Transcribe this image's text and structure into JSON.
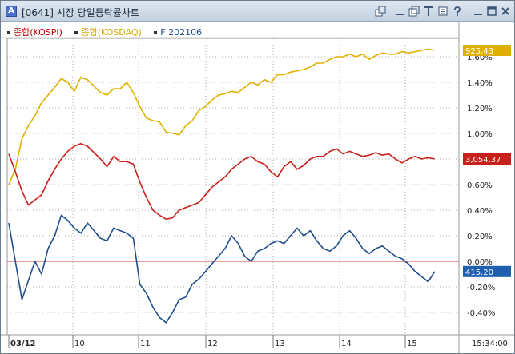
{
  "window": {
    "code": "[0641]",
    "title": "시장 당일등락률차트",
    "app_icon_letter": "A"
  },
  "legend": [
    {
      "label": "종합(KOSPI)",
      "color": "#c00000"
    },
    {
      "label": "종합(KOSDAQ)",
      "color": "#d4aa00"
    },
    {
      "label": "F 202106",
      "color": "#1f4e8a"
    }
  ],
  "colors": {
    "kospi": "#c8201a",
    "kosdaq": "#e0b000",
    "futures": "#1f4e8a",
    "zero_line": "#d63a3a",
    "grid": "#a8a8a8",
    "background": "#ffffff"
  },
  "value_labels": {
    "kosdaq": "925.43",
    "kospi": "3,054.37",
    "futures": "415.20"
  },
  "chart_data": {
    "type": "line",
    "title": "",
    "xlabel": "",
    "ylabel": "",
    "x_ticks": [
      "03/12",
      "10",
      "11",
      "12",
      "13",
      "14",
      "15"
    ],
    "time_label": "15:34:00",
    "y_ticks": [
      "1.60%",
      "1.40%",
      "1.20%",
      "1.00%",
      "0.80%",
      "0.60%",
      "0.40%",
      "0.20%",
      "0.00%",
      "-0.20%",
      "-0.40%"
    ],
    "ylim": [
      -0.55,
      1.72
    ],
    "x_range": [
      0,
      66
    ],
    "grid": true,
    "series": [
      {
        "name": "종합(KOSDAQ)",
        "key": "kosdaq",
        "x": [
          0,
          1,
          2,
          3,
          4,
          5,
          6,
          7,
          8,
          9,
          10,
          11,
          12,
          13,
          14,
          15,
          16,
          17,
          18,
          19,
          20,
          21,
          22,
          23,
          24,
          25,
          26,
          27,
          28,
          29,
          30,
          31,
          32,
          33,
          34,
          35,
          36,
          37,
          38,
          39,
          40,
          41,
          42,
          43,
          44,
          45,
          46,
          47,
          48,
          49,
          50,
          51,
          52,
          53,
          54,
          55,
          56,
          57,
          58,
          59,
          60,
          61,
          62,
          63,
          64,
          65
        ],
        "values": [
          0.6,
          0.72,
          0.96,
          1.06,
          1.14,
          1.24,
          1.3,
          1.36,
          1.43,
          1.4,
          1.33,
          1.44,
          1.42,
          1.37,
          1.32,
          1.3,
          1.35,
          1.35,
          1.4,
          1.32,
          1.21,
          1.12,
          1.1,
          1.09,
          1.01,
          1.0,
          0.99,
          1.06,
          1.1,
          1.18,
          1.21,
          1.26,
          1.3,
          1.31,
          1.33,
          1.32,
          1.36,
          1.4,
          1.38,
          1.42,
          1.4,
          1.46,
          1.46,
          1.48,
          1.49,
          1.5,
          1.52,
          1.55,
          1.55,
          1.58,
          1.6,
          1.6,
          1.62,
          1.6,
          1.62,
          1.58,
          1.61,
          1.63,
          1.62,
          1.62,
          1.64,
          1.63,
          1.64,
          1.65,
          1.66,
          1.65
        ]
      },
      {
        "name": "종합(KOSPI)",
        "key": "kospi",
        "x": [
          0,
          1,
          2,
          3,
          4,
          5,
          6,
          7,
          8,
          9,
          10,
          11,
          12,
          13,
          14,
          15,
          16,
          17,
          18,
          19,
          20,
          21,
          22,
          23,
          24,
          25,
          26,
          27,
          28,
          29,
          30,
          31,
          32,
          33,
          34,
          35,
          36,
          37,
          38,
          39,
          40,
          41,
          42,
          43,
          44,
          45,
          46,
          47,
          48,
          49,
          50,
          51,
          52,
          53,
          54,
          55,
          56,
          57,
          58,
          59,
          60,
          61,
          62,
          63,
          64,
          65
        ],
        "values": [
          0.84,
          0.7,
          0.55,
          0.44,
          0.48,
          0.52,
          0.63,
          0.72,
          0.8,
          0.86,
          0.9,
          0.92,
          0.9,
          0.85,
          0.8,
          0.74,
          0.82,
          0.78,
          0.78,
          0.76,
          0.62,
          0.5,
          0.4,
          0.36,
          0.33,
          0.34,
          0.4,
          0.42,
          0.44,
          0.46,
          0.52,
          0.58,
          0.62,
          0.66,
          0.72,
          0.76,
          0.8,
          0.82,
          0.78,
          0.76,
          0.7,
          0.66,
          0.74,
          0.78,
          0.72,
          0.75,
          0.8,
          0.82,
          0.82,
          0.86,
          0.88,
          0.84,
          0.86,
          0.84,
          0.82,
          0.83,
          0.85,
          0.83,
          0.84,
          0.8,
          0.77,
          0.8,
          0.82,
          0.8,
          0.81,
          0.8
        ]
      },
      {
        "name": "F 202106",
        "key": "futures",
        "x": [
          0,
          1,
          2,
          3,
          4,
          5,
          6,
          7,
          8,
          9,
          10,
          11,
          12,
          13,
          14,
          15,
          16,
          17,
          18,
          19,
          20,
          21,
          22,
          23,
          24,
          25,
          26,
          27,
          28,
          29,
          30,
          31,
          32,
          33,
          34,
          35,
          36,
          37,
          38,
          39,
          40,
          41,
          42,
          43,
          44,
          45,
          46,
          47,
          48,
          49,
          50,
          51,
          52,
          53,
          54,
          55,
          56,
          57,
          58,
          59,
          60,
          61,
          62,
          63,
          64,
          65
        ],
        "values": [
          0.3,
          0.0,
          -0.3,
          -0.15,
          0.0,
          -0.1,
          0.1,
          0.2,
          0.36,
          0.32,
          0.26,
          0.22,
          0.3,
          0.24,
          0.18,
          0.16,
          0.26,
          0.24,
          0.22,
          0.18,
          -0.18,
          -0.25,
          -0.36,
          -0.44,
          -0.48,
          -0.4,
          -0.3,
          -0.28,
          -0.18,
          -0.14,
          -0.08,
          -0.02,
          0.04,
          0.1,
          0.2,
          0.14,
          0.04,
          0.0,
          0.08,
          0.1,
          0.14,
          0.16,
          0.14,
          0.2,
          0.26,
          0.2,
          0.24,
          0.16,
          0.1,
          0.08,
          0.12,
          0.2,
          0.24,
          0.18,
          0.1,
          0.06,
          0.1,
          0.12,
          0.08,
          0.04,
          0.02,
          -0.02,
          -0.08,
          -0.12,
          -0.16,
          -0.08
        ]
      }
    ]
  }
}
